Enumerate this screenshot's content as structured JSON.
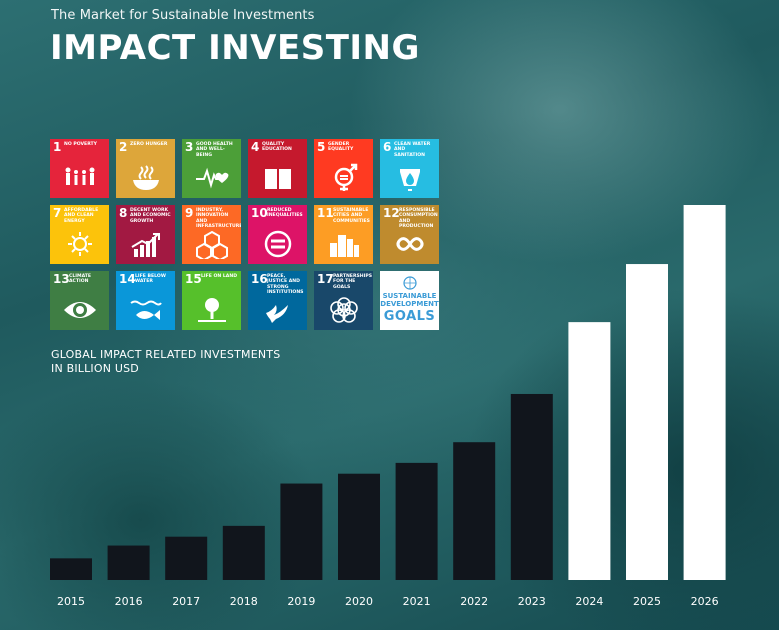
{
  "header": {
    "subtitle": "The Market for Sustainable Investments",
    "title": "IMPACT INVESTING"
  },
  "sdg_tiles": [
    {
      "num": "1",
      "label": "NO POVERTY",
      "color": "#e5243b",
      "icon": "people-icon"
    },
    {
      "num": "2",
      "label": "ZERO HUNGER",
      "color": "#dda63a",
      "icon": "bowl-icon"
    },
    {
      "num": "3",
      "label": "GOOD HEALTH AND WELL-BEING",
      "color": "#4c9f38",
      "icon": "heartbeat-icon"
    },
    {
      "num": "4",
      "label": "QUALITY EDUCATION",
      "color": "#c5192d",
      "icon": "book-icon"
    },
    {
      "num": "5",
      "label": "GENDER EQUALITY",
      "color": "#ff3a21",
      "icon": "gender-icon"
    },
    {
      "num": "6",
      "label": "CLEAN WATER AND SANITATION",
      "color": "#26bde2",
      "icon": "water-icon"
    },
    {
      "num": "7",
      "label": "AFFORDABLE AND CLEAN ENERGY",
      "color": "#fcc30b",
      "icon": "sun-icon"
    },
    {
      "num": "8",
      "label": "DECENT WORK AND ECONOMIC GROWTH",
      "color": "#a21942",
      "icon": "growth-chart-icon"
    },
    {
      "num": "9",
      "label": "INDUSTRY, INNOVATION AND INFRASTRUCTURE",
      "color": "#fd6925",
      "icon": "cubes-icon"
    },
    {
      "num": "10",
      "label": "REDUCED INEQUALITIES",
      "color": "#dd1367",
      "icon": "equals-icon"
    },
    {
      "num": "11",
      "label": "SUSTAINABLE CITIES AND COMMUNITIES",
      "color": "#fd9d24",
      "icon": "city-icon"
    },
    {
      "num": "12",
      "label": "RESPONSIBLE CONSUMPTION AND PRODUCTION",
      "color": "#bf8b2e",
      "icon": "infinity-icon"
    },
    {
      "num": "13",
      "label": "CLIMATE ACTION",
      "color": "#3f7e44",
      "icon": "eye-globe-icon"
    },
    {
      "num": "14",
      "label": "LIFE BELOW WATER",
      "color": "#0a97d9",
      "icon": "fish-icon"
    },
    {
      "num": "15",
      "label": "LIFE ON LAND",
      "color": "#56c02b",
      "icon": "tree-icon"
    },
    {
      "num": "16",
      "label": "PEACE, JUSTICE AND STRONG INSTITUTIONS",
      "color": "#00689d",
      "icon": "dove-icon"
    },
    {
      "num": "17",
      "label": "PARTNERSHIPS FOR THE GOALS",
      "color": "#19486a",
      "icon": "rings-icon"
    }
  ],
  "sdg_logo": {
    "line1": "SUSTAINABLE",
    "line2": "DEVELOPMENT",
    "line3": "GOALS",
    "icon": "un-emblem-icon"
  },
  "chart_label": {
    "line1": "GLOBAL IMPACT RELATED INVESTMENTS",
    "line2": "IN BILLION USD"
  },
  "chart_data": {
    "type": "bar",
    "title": "GLOBAL IMPACT RELATED INVESTMENTS IN BILLION USD",
    "categories": [
      "2015",
      "2016",
      "2017",
      "2018",
      "2019",
      "2020",
      "2021",
      "2022",
      "2023",
      "2024",
      "2025",
      "2026"
    ],
    "values": [
      22,
      35,
      44,
      55,
      98,
      108,
      119,
      140,
      189,
      262,
      321,
      381
    ],
    "forecast_from": "2024",
    "colors": {
      "actual": "#11151c",
      "forecast": "#ffffff",
      "axis_text": "#ffffff"
    },
    "ylim": [
      0,
      381
    ],
    "grid": false,
    "legend": "none"
  }
}
